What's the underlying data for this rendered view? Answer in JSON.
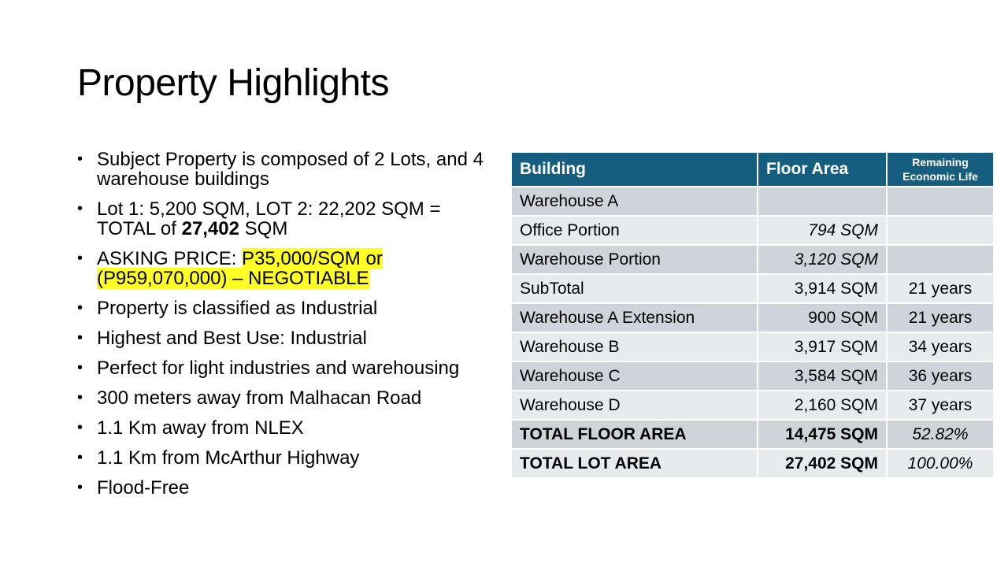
{
  "slide": {
    "title": "Property Highlights"
  },
  "bullets": {
    "b1": "Subject Property is composed of 2 Lots, and 4 warehouse buildings",
    "b2_pre": "Lot 1: 5,200 SQM, LOT 2: 22,202 SQM = TOTAL of ",
    "b2_bold": "27,402",
    "b2_post": " SQM",
    "b3_pre": "ASKING PRICE: ",
    "b3_highlight": "P35,000/SQM  or (P959,070,000)  – NEGOTIABLE",
    "b4": "Property is classified as Industrial",
    "b5": "Highest and Best Use: Industrial",
    "b6": "Perfect for light industries and warehousing",
    "b7": "300 meters away from Malhacan Road",
    "b8": "1.1 Km away from NLEX",
    "b9": "1.1 Km from McArthur Highway",
    "b10": "Flood-Free"
  },
  "colors": {
    "table_header": "#155e7f",
    "row_dark": "#cfd4da",
    "row_light": "#e8ebee",
    "highlight": "#ffff26"
  },
  "table": {
    "headers": {
      "building": "Building",
      "floor_area": "Floor Area",
      "remaining_life": "Remaining Economic Life"
    },
    "rows": [
      {
        "building": "Warehouse A",
        "area": "",
        "life": ""
      },
      {
        "building": "Office Portion",
        "area": "794 SQM",
        "life": ""
      },
      {
        "building": "Warehouse Portion",
        "area": "3,120 SQM",
        "life": ""
      },
      {
        "building": "SubTotal",
        "area": "3,914 SQM",
        "life": "21 years"
      },
      {
        "building": "Warehouse A Extension",
        "area": "900 SQM",
        "life": "21 years"
      },
      {
        "building": "Warehouse B",
        "area": "3,917 SQM",
        "life": "34 years"
      },
      {
        "building": "Warehouse C",
        "area": "3,584 SQM",
        "life": "36 years"
      },
      {
        "building": "Warehouse D",
        "area": "2,160 SQM",
        "life": "37 years"
      },
      {
        "building": "TOTAL FLOOR AREA",
        "area": "14,475 SQM",
        "life": "52.82%"
      },
      {
        "building": "TOTAL LOT AREA",
        "area": "27,402 SQM",
        "life": "100.00%"
      }
    ]
  }
}
